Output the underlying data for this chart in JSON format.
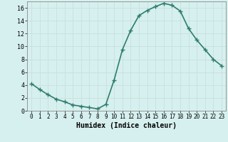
{
  "x": [
    0,
    1,
    2,
    3,
    4,
    5,
    6,
    7,
    8,
    9,
    10,
    11,
    12,
    13,
    14,
    15,
    16,
    17,
    18,
    19,
    20,
    21,
    22,
    23
  ],
  "y": [
    4.2,
    3.3,
    2.5,
    1.8,
    1.4,
    0.9,
    0.7,
    0.5,
    0.3,
    1.0,
    4.8,
    9.5,
    12.5,
    14.8,
    15.6,
    16.2,
    16.7,
    16.4,
    15.5,
    12.8,
    11.0,
    9.5,
    8.0,
    7.0
  ],
  "line_color": "#2e7d6e",
  "marker": "D",
  "marker_size": 2.2,
  "bg_color": "#d6f0ef",
  "grid_color": "#c8e0de",
  "xlabel": "Humidex (Indice chaleur)",
  "xlim": [
    -0.5,
    23.5
  ],
  "ylim": [
    0,
    17
  ],
  "yticks": [
    0,
    2,
    4,
    6,
    8,
    10,
    12,
    14,
    16
  ],
  "xticks": [
    0,
    1,
    2,
    3,
    4,
    5,
    6,
    7,
    8,
    9,
    10,
    11,
    12,
    13,
    14,
    15,
    16,
    17,
    18,
    19,
    20,
    21,
    22,
    23
  ],
  "xlabel_fontsize": 7,
  "tick_fontsize": 6,
  "linewidth": 1.2
}
